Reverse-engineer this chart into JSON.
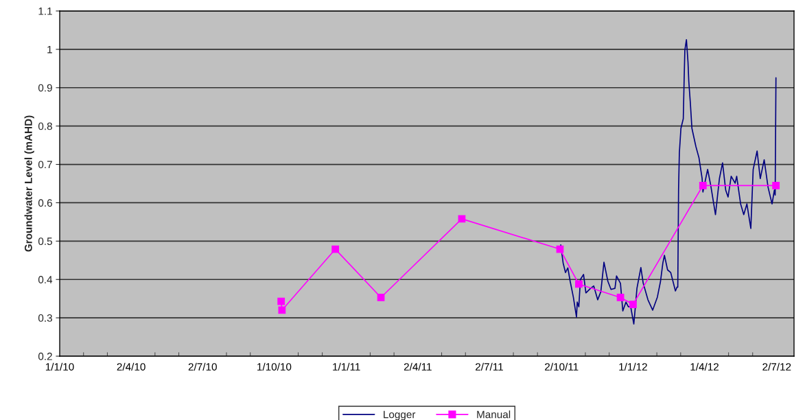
{
  "chart_data": {
    "type": "line",
    "ylabel": "Groundwater Level (mAHD)",
    "xlim": [
      "2010-01-01",
      "2012-07-24"
    ],
    "ylim": [
      0.2,
      1.1
    ],
    "xticks": [
      {
        "value": "2010-01-01",
        "label": "1/1/10"
      },
      {
        "value": "2010-04-02",
        "label": "2/4/10"
      },
      {
        "value": "2010-07-02",
        "label": "2/7/10"
      },
      {
        "value": "2010-10-01",
        "label": "1/10/10"
      },
      {
        "value": "2011-01-01",
        "label": "1/1/11"
      },
      {
        "value": "2011-04-02",
        "label": "2/4/11"
      },
      {
        "value": "2011-07-02",
        "label": "2/7/11"
      },
      {
        "value": "2011-10-02",
        "label": "2/10/11"
      },
      {
        "value": "2012-01-01",
        "label": "1/1/12"
      },
      {
        "value": "2012-04-01",
        "label": "1/4/12"
      },
      {
        "value": "2012-07-02",
        "label": "2/7/12"
      }
    ],
    "yticks": [
      0.2,
      0.3,
      0.4,
      0.5,
      0.6,
      0.7,
      0.8,
      0.9,
      1,
      1.1
    ],
    "grid": "y",
    "legend": "bottom",
    "line_style": "solid",
    "series": [
      {
        "name": "Logger",
        "color": "#000080",
        "marker": "none",
        "x": [
          "2011-10-01",
          "2011-10-04",
          "2011-10-07",
          "2011-10-10",
          "2011-10-13",
          "2011-10-17",
          "2011-10-21",
          "2011-10-22",
          "2011-10-24",
          "2011-10-26",
          "2011-10-30",
          "2011-11-02",
          "2011-11-08",
          "2011-11-12",
          "2011-11-17",
          "2011-11-21",
          "2011-11-25",
          "2011-11-30",
          "2011-12-04",
          "2011-12-09",
          "2011-12-11",
          "2011-12-16",
          "2011-12-19",
          "2011-12-23",
          "2011-12-26",
          "2011-12-29",
          "2012-01-02",
          "2012-01-04",
          "2012-01-06",
          "2012-01-11",
          "2012-01-14",
          "2012-01-20",
          "2012-01-26",
          "2012-02-01",
          "2012-02-05",
          "2012-02-08",
          "2012-02-10",
          "2012-02-14",
          "2012-02-18",
          "2012-02-24",
          "2012-02-26",
          "2012-02-27",
          "2012-02-28",
          "2012-02-29",
          "2012-03-02",
          "2012-03-05",
          "2012-03-06",
          "2012-03-07",
          "2012-03-09",
          "2012-03-11",
          "2012-03-12",
          "2012-03-14",
          "2012-03-16",
          "2012-03-21",
          "2012-03-25",
          "2012-03-29",
          "2012-03-30",
          "2012-04-05",
          "2012-04-09",
          "2012-04-15",
          "2012-04-20",
          "2012-04-24",
          "2012-04-28",
          "2012-05-01",
          "2012-05-05",
          "2012-05-10",
          "2012-05-12",
          "2012-05-17",
          "2012-05-21",
          "2012-05-25",
          "2012-05-30",
          "2012-06-02",
          "2012-06-07",
          "2012-06-11",
          "2012-06-16",
          "2012-06-21",
          "2012-06-26",
          "2012-06-29",
          "2012-06-30",
          "2012-07-01"
        ],
        "values": [
          0.49,
          0.443,
          0.418,
          0.43,
          0.395,
          0.354,
          0.302,
          0.341,
          0.329,
          0.4,
          0.413,
          0.365,
          0.377,
          0.383,
          0.347,
          0.368,
          0.445,
          0.395,
          0.374,
          0.377,
          0.409,
          0.39,
          0.318,
          0.341,
          0.329,
          0.329,
          0.284,
          0.329,
          0.377,
          0.431,
          0.39,
          0.347,
          0.32,
          0.354,
          0.395,
          0.443,
          0.463,
          0.425,
          0.418,
          0.37,
          0.38,
          0.38,
          0.636,
          0.73,
          0.794,
          0.819,
          0.914,
          0.998,
          1.025,
          0.967,
          0.917,
          0.86,
          0.794,
          0.747,
          0.717,
          0.663,
          0.628,
          0.687,
          0.645,
          0.569,
          0.663,
          0.704,
          0.633,
          0.615,
          0.669,
          0.651,
          0.669,
          0.597,
          0.569,
          0.597,
          0.533,
          0.687,
          0.735,
          0.663,
          0.712,
          0.64,
          0.597,
          0.633,
          0.62,
          0.926
        ]
      },
      {
        "name": "Manual",
        "color": "#ff00ff",
        "marker": "square",
        "x": [
          "2010-10-10",
          "2010-10-11",
          "2010-12-18",
          "2011-02-14",
          "2011-05-28",
          "2011-09-30",
          "2011-10-24",
          "2011-12-16",
          "2012-01-01",
          "2012-03-30",
          "2012-07-01"
        ],
        "values": [
          0.343,
          0.32,
          0.479,
          0.353,
          0.558,
          0.479,
          0.388,
          0.353,
          0.335,
          0.645,
          0.645
        ]
      }
    ]
  }
}
